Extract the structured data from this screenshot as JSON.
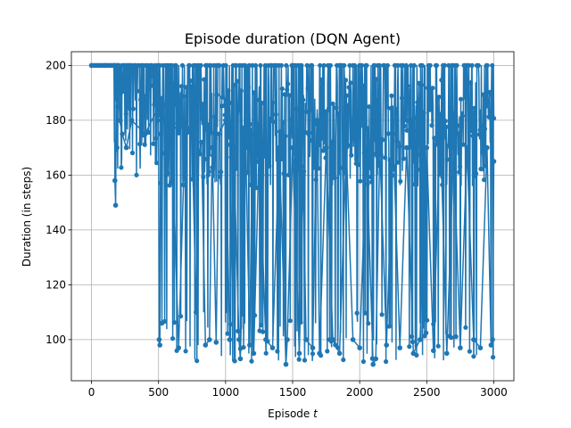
{
  "chart_data": {
    "type": "line",
    "title": "Episode duration (DQN Agent)",
    "xlabel": "Episode",
    "xlabel_var": "t",
    "ylabel": "Duration (in steps)",
    "xlim": [
      -150,
      3150
    ],
    "ylim": [
      85,
      205
    ],
    "xticks": [
      0,
      500,
      1000,
      1500,
      2000,
      2500,
      3000
    ],
    "yticks": [
      100,
      120,
      140,
      160,
      180,
      200
    ],
    "grid": true,
    "colors": {
      "series": "#1f77b4",
      "grid": "#b0b0b0"
    },
    "series": [
      {
        "marker": "circle",
        "episodes": 3000,
        "x": [
          0,
          100,
          170,
          175,
          180,
          185,
          190,
          195,
          200,
          210,
          230,
          260,
          300,
          400,
          500,
          505,
          510,
          515,
          520,
          525,
          530,
          560,
          600,
          650,
          700,
          750,
          780,
          800,
          820,
          850,
          880,
          900,
          930,
          950,
          1000,
          1030,
          1060,
          1100,
          1110,
          1150,
          1180,
          1200,
          1210,
          1250,
          1300,
          1350,
          1400,
          1450,
          1460,
          1500,
          1550,
          1580,
          1600,
          1650,
          1680,
          1700,
          1750,
          1800,
          1850,
          1900,
          1950,
          2000,
          2050,
          2100,
          2120,
          2150,
          2200,
          2250,
          2300,
          2350,
          2400,
          2450,
          2500,
          2550,
          2600,
          2650,
          2700,
          2750,
          2800,
          2850,
          2900,
          2950,
          2980,
          2990,
          3000
        ],
        "y": [
          200,
          200,
          200,
          158,
          149,
          190,
          170,
          185,
          200,
          180,
          175,
          170,
          180,
          175,
          185,
          100,
          98,
          175,
          180,
          106,
          185,
          170,
          175,
          97,
          180,
          175,
          110,
          168,
          172,
          98,
          100,
          170,
          99,
          175,
          180,
          100,
          170,
          100,
          93,
          170,
          98,
          175,
          95,
          170,
          100,
          97,
          170,
          91,
          100,
          170,
          95,
          160,
          100,
          97,
          180,
          95,
          170,
          100,
          95,
          170,
          100,
          97,
          170,
          91,
          93,
          170,
          98,
          175,
          97,
          170,
          95,
          100,
          170,
          96,
          180,
          95,
          170,
          97,
          170,
          100,
          97,
          170,
          98,
          100,
          165
        ]
      }
    ]
  }
}
